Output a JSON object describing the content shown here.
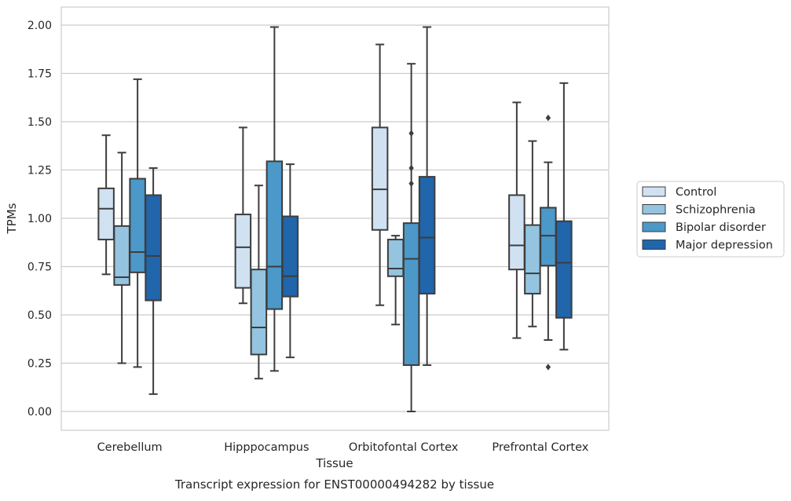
{
  "chart_data": {
    "type": "box",
    "title": "",
    "caption": "Transcript expression for ENST00000494282 by tissue",
    "xlabel": "Tissue",
    "ylabel": "TPMs",
    "ylim": [
      -0.1,
      2.1
    ],
    "yticks": [
      0.0,
      0.25,
      0.5,
      0.75,
      1.0,
      1.25,
      1.5,
      1.75,
      2.0
    ],
    "ytick_labels": [
      "0.00",
      "0.25",
      "0.50",
      "0.75",
      "1.00",
      "1.25",
      "1.50",
      "1.75",
      "2.00"
    ],
    "grid": "horizontal",
    "legend_placement": "right",
    "categories": [
      "Cerebellum",
      "Hipppocampus",
      "Orbitofontal Cortex",
      "Prefrontal Cortex"
    ],
    "series": [
      {
        "name": "Control",
        "color": "#d0e1f2",
        "boxes": [
          {
            "whislo": 0.71,
            "q1": 0.89,
            "med": 1.05,
            "q3": 1.155,
            "whishi": 1.43,
            "fliers": []
          },
          {
            "whislo": 0.56,
            "q1": 0.64,
            "med": 0.85,
            "q3": 1.02,
            "whishi": 1.47,
            "fliers": []
          },
          {
            "whislo": 0.55,
            "q1": 0.94,
            "med": 1.15,
            "q3": 1.47,
            "whishi": 1.9,
            "fliers": []
          },
          {
            "whislo": 0.38,
            "q1": 0.735,
            "med": 0.86,
            "q3": 1.12,
            "whishi": 1.6,
            "fliers": []
          }
        ]
      },
      {
        "name": "Schizophrenia",
        "color": "#94c4df",
        "boxes": [
          {
            "whislo": 0.25,
            "q1": 0.655,
            "med": 0.695,
            "q3": 0.96,
            "whishi": 1.34,
            "fliers": []
          },
          {
            "whislo": 0.17,
            "q1": 0.295,
            "med": 0.435,
            "q3": 0.735,
            "whishi": 1.17,
            "fliers": []
          },
          {
            "whislo": 0.45,
            "q1": 0.7,
            "med": 0.74,
            "q3": 0.89,
            "whishi": 0.91,
            "fliers": []
          },
          {
            "whislo": 0.44,
            "q1": 0.61,
            "med": 0.715,
            "q3": 0.965,
            "whishi": 1.4,
            "fliers": []
          }
        ]
      },
      {
        "name": "Bipolar disorder",
        "color": "#4b98c9",
        "boxes": [
          {
            "whislo": 0.23,
            "q1": 0.72,
            "med": 0.825,
            "q3": 1.205,
            "whishi": 1.72,
            "fliers": []
          },
          {
            "whislo": 0.21,
            "q1": 0.53,
            "med": 0.75,
            "q3": 1.295,
            "whishi": 1.99,
            "fliers": []
          },
          {
            "whislo": 0.0,
            "q1": 0.24,
            "med": 0.79,
            "q3": 0.975,
            "whishi": 1.8,
            "fliers": [
              1.44,
              1.26,
              1.18
            ]
          },
          {
            "whislo": 0.37,
            "q1": 0.755,
            "med": 0.91,
            "q3": 1.055,
            "whishi": 1.29,
            "fliers": [
              1.52,
              0.23
            ]
          }
        ]
      },
      {
        "name": "Major depression",
        "color": "#2165ab",
        "boxes": [
          {
            "whislo": 0.09,
            "q1": 0.575,
            "med": 0.805,
            "q3": 1.12,
            "whishi": 1.26,
            "fliers": []
          },
          {
            "whislo": 0.28,
            "q1": 0.595,
            "med": 0.7,
            "q3": 1.01,
            "whishi": 1.28,
            "fliers": []
          },
          {
            "whislo": 0.24,
            "q1": 0.61,
            "med": 0.9,
            "q3": 1.215,
            "whishi": 1.99,
            "fliers": []
          },
          {
            "whislo": 0.32,
            "q1": 0.485,
            "med": 0.77,
            "q3": 0.985,
            "whishi": 1.7,
            "fliers": []
          }
        ]
      }
    ]
  }
}
